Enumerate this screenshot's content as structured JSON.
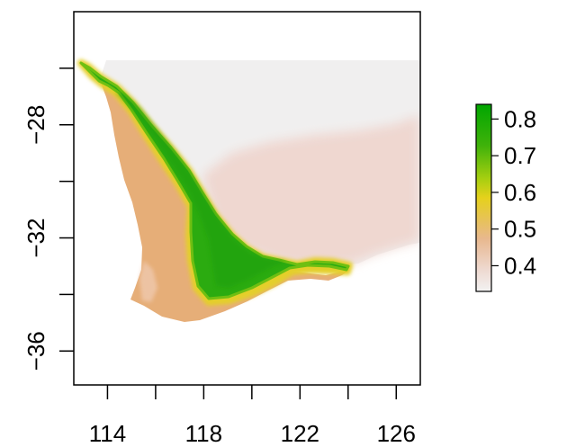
{
  "map": {
    "x_axis": {
      "ticks": [
        {
          "value": 114,
          "label": "114"
        },
        {
          "value": 116,
          "label": ""
        },
        {
          "value": 118,
          "label": "118"
        },
        {
          "value": 120,
          "label": ""
        },
        {
          "value": 122,
          "label": "122"
        },
        {
          "value": 124,
          "label": ""
        },
        {
          "value": 126,
          "label": "126"
        }
      ],
      "range": [
        112.6,
        127.0
      ]
    },
    "y_axis": {
      "ticks": [
        {
          "value": -26,
          "label": ""
        },
        {
          "value": -28,
          "label": "−28"
        },
        {
          "value": -30,
          "label": ""
        },
        {
          "value": -32,
          "label": "−32"
        },
        {
          "value": -34,
          "label": ""
        },
        {
          "value": -36,
          "label": "−36"
        }
      ],
      "range": [
        -37.2,
        -24.0
      ]
    },
    "legend": {
      "labels": [
        "0.8",
        "0.7",
        "0.6",
        "0.5",
        "0.4"
      ],
      "label_values": [
        0.8,
        0.7,
        0.6,
        0.5,
        0.4
      ],
      "scale_range": [
        0.33,
        0.84
      ],
      "gradient_colors": [
        "#f2f2f2",
        "#eed8cf",
        "#e8b88f",
        "#e7c25a",
        "#e6d11c",
        "#a8cf10",
        "#3fb20a",
        "#00a600"
      ],
      "placement": "right"
    },
    "colors": {
      "low": "#f2f2f2",
      "background_pale": "#efd7d0",
      "mid": "#e8b07b",
      "transition": "#e6d11c",
      "high": "#2aaa10"
    }
  }
}
